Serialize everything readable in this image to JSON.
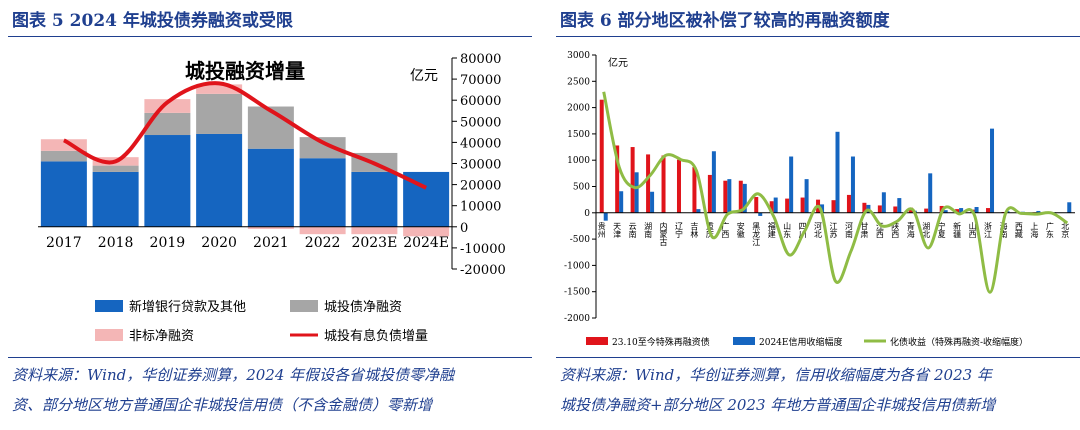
{
  "left": {
    "title": "图表 5   2024 年城投债券融资或受限",
    "source_line1": "资料来源：Wind，华创证券测算，2024 年假设各省城投债零净融",
    "source_line2": "资、部分地区地方普通国企非城投信用债（不含金融债）零新增",
    "chart_data": {
      "type": "bar",
      "title": "城投融资增量",
      "unit": "亿元",
      "categories": [
        "2017",
        "2018",
        "2019",
        "2020",
        "2021",
        "2022",
        "2023E",
        "2024E"
      ],
      "ylim": [
        -20000,
        80000
      ],
      "yticks": [
        -20000,
        -10000,
        0,
        10000,
        20000,
        30000,
        40000,
        50000,
        60000,
        70000,
        80000
      ],
      "series": [
        {
          "name": "新增银行贷款及其他",
          "kind": "stack",
          "color": "#1565c0",
          "values": [
            31000,
            26000,
            43500,
            44000,
            37000,
            32500,
            26000,
            26000
          ]
        },
        {
          "name": "城投债净融资",
          "kind": "stack",
          "color": "#a6a6a6",
          "values": [
            5000,
            3000,
            10500,
            19000,
            20000,
            10000,
            9000,
            0
          ]
        },
        {
          "name": "非标净融资",
          "kind": "stack",
          "color": "#f4b6b6",
          "values": [
            5500,
            4000,
            6500,
            4500,
            -1000,
            -3500,
            -3500,
            -4500
          ]
        },
        {
          "name": "城投有息负债增量",
          "kind": "line",
          "color": "#e0141b",
          "values": [
            41000,
            31000,
            59000,
            68000,
            55000,
            40000,
            30000,
            18500
          ]
        }
      ],
      "legend_position": "bottom"
    }
  },
  "right": {
    "title": "图表 6   部分地区被补偿了较高的再融资额度",
    "source_line1": "资料来源：Wind，华创证券测算，信用收缩幅度为各省 2023 年",
    "source_line2": "城投债净融资+部分地区 2023 年地方普通国企非城投信用债新增",
    "chart_data": {
      "type": "bar",
      "unit": "亿元",
      "categories": [
        "贵州",
        "天津",
        "云南",
        "湖南",
        "内蒙古",
        "辽宁",
        "吉林",
        "重庆",
        "广西",
        "安徽",
        "黑龙江",
        "福建",
        "山东",
        "四川",
        "河北",
        "江苏",
        "河南",
        "甘肃",
        "江西",
        "陕西",
        "青海",
        "湖北",
        "宁夏",
        "新疆",
        "山西",
        "浙江",
        "海南",
        "西藏",
        "上海",
        "广东",
        "北京"
      ],
      "ylim": [
        -2000,
        3000
      ],
      "yticks": [
        -2000,
        -1500,
        -1000,
        -500,
        0,
        500,
        1000,
        1500,
        2000,
        2500,
        3000
      ],
      "series": [
        {
          "name": "23.10至今特殊再融资债",
          "kind": "bar",
          "color": "#e0141b",
          "values": [
            2150,
            1280,
            1250,
            1110,
            1090,
            1010,
            870,
            720,
            610,
            610,
            300,
            220,
            270,
            290,
            250,
            240,
            340,
            190,
            140,
            120,
            100,
            80,
            130,
            70,
            60,
            90,
            15,
            10,
            10,
            5,
            5
          ]
        },
        {
          "name": "2024E信用收缩幅度",
          "kind": "bar",
          "color": "#1565c0",
          "values": [
            -150,
            410,
            770,
            400,
            0,
            0,
            70,
            1170,
            640,
            550,
            -60,
            290,
            1070,
            640,
            160,
            1540,
            1070,
            150,
            390,
            280,
            40,
            750,
            50,
            90,
            110,
            1600,
            30,
            20,
            35,
            10,
            200
          ]
        },
        {
          "name": "化债收益（特殊再融资-收缩幅度）",
          "kind": "line",
          "color": "#8fbc45",
          "values": [
            2300,
            870,
            480,
            710,
            1090,
            1010,
            800,
            -450,
            -30,
            60,
            360,
            -70,
            -800,
            -350,
            90,
            -1300,
            -730,
            40,
            -250,
            -160,
            60,
            -670,
            80,
            -20,
            -50,
            -1510,
            -15,
            -10,
            -25,
            -5,
            -195
          ]
        }
      ],
      "legend_position": "bottom"
    }
  }
}
